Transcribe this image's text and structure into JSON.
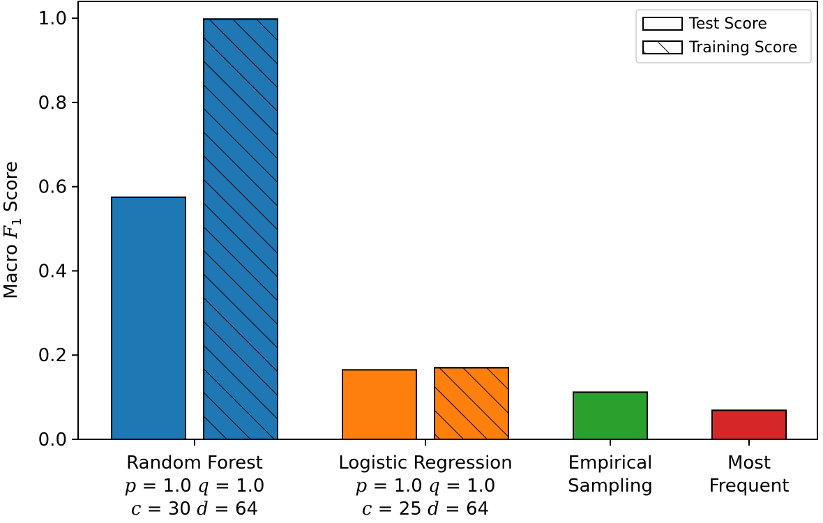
{
  "chart_data": {
    "type": "bar",
    "ylabel_prefix": "Macro ",
    "ylabel_var": "F",
    "ylabel_sub": "1",
    "ylabel_suffix": " Score",
    "ylim": [
      0,
      1.04
    ],
    "yticks": [
      "0.0",
      "0.2",
      "0.4",
      "0.6",
      "0.8",
      "1.0"
    ],
    "legend": {
      "position": "top-right",
      "entries": [
        {
          "label": "Test Score",
          "hatch": false
        },
        {
          "label": "Training Score",
          "hatch": true
        }
      ]
    },
    "groups": [
      {
        "label_lines": [
          "Random Forest",
          "p = 1.0  q = 1.0",
          "c = 30  d = 64"
        ],
        "color": "#1f77b4",
        "test": 0.575,
        "train": 0.998
      },
      {
        "label_lines": [
          "Logistic Regression",
          "p = 1.0  q = 1.0",
          "c = 25  d = 64"
        ],
        "color": "#ff7f0e",
        "test": 0.165,
        "train": 0.17
      },
      {
        "label_lines": [
          "Empirical",
          "Sampling"
        ],
        "color": "#2ca02c",
        "test": 0.112,
        "train": null
      },
      {
        "label_lines": [
          "Most",
          "Frequent"
        ],
        "color": "#d62728",
        "test": 0.069,
        "train": null
      }
    ]
  }
}
